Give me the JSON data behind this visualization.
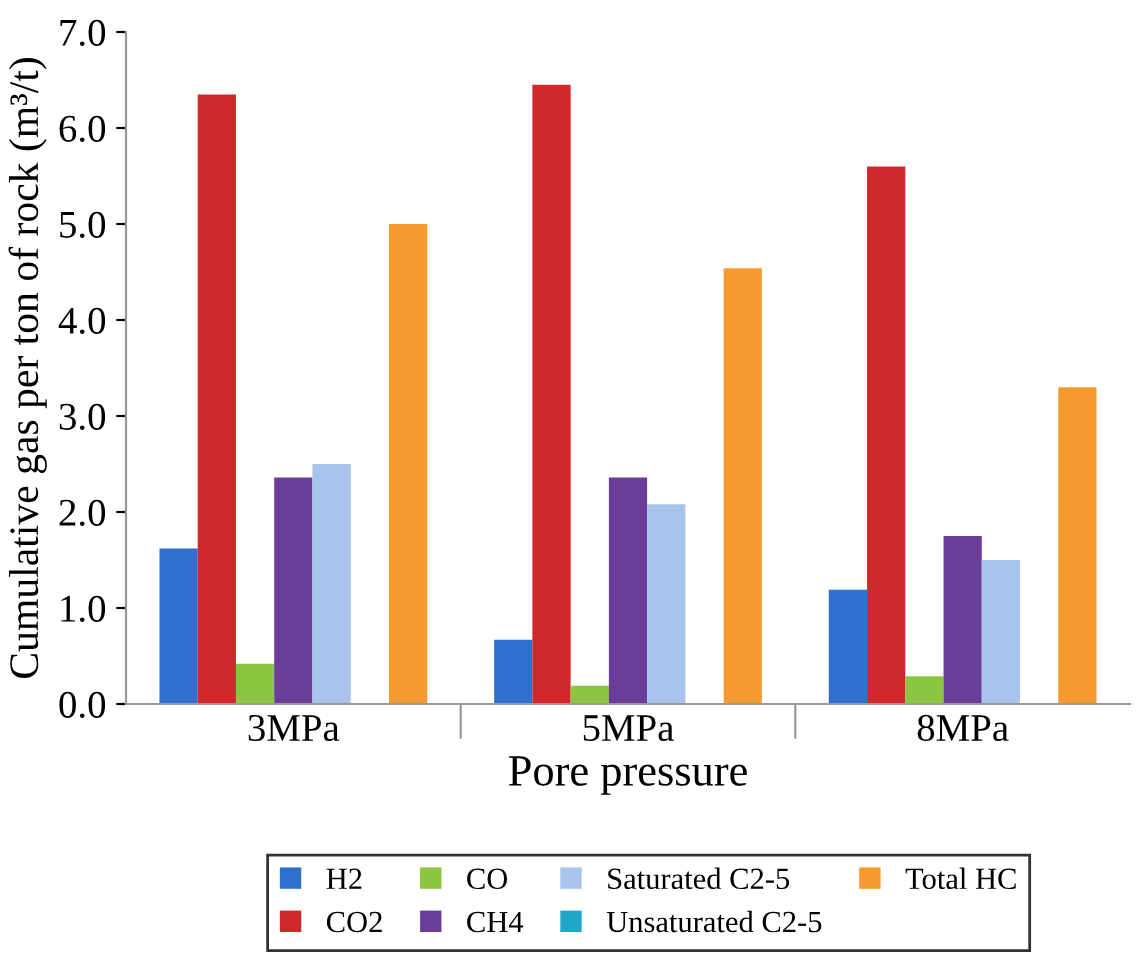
{
  "chart_data": {
    "type": "bar",
    "xlabel": "Pore pressure",
    "ylabel": "Cumulative gas per ton of rock (m³/t)",
    "categories": [
      "3MPa",
      "5MPa",
      "8MPa"
    ],
    "series": [
      {
        "name": "H2",
        "color": "#2e6fd0",
        "values": [
          1.62,
          0.67,
          1.19
        ]
      },
      {
        "name": "CO2",
        "color": "#d0282a",
        "values": [
          6.35,
          6.45,
          5.6
        ]
      },
      {
        "name": "CO",
        "color": "#8cc63e",
        "values": [
          0.42,
          0.19,
          0.29
        ]
      },
      {
        "name": "CH4",
        "color": "#6a3d9a",
        "values": [
          2.36,
          2.36,
          1.75
        ]
      },
      {
        "name": "Saturated C2-5",
        "color": "#a9c4ec",
        "values": [
          2.5,
          2.08,
          1.5
        ]
      },
      {
        "name": "Unsaturated C2-5",
        "color": "#1fa6c9",
        "values": [
          0,
          0,
          0
        ]
      },
      {
        "name": "Total HC",
        "color": "#f59a2e",
        "values": [
          5.0,
          4.54,
          3.3
        ]
      }
    ],
    "ylim": [
      0,
      7
    ],
    "yticks": [
      {
        "value": 0,
        "label": "0.0"
      },
      {
        "value": 1,
        "label": "1.0"
      },
      {
        "value": 2,
        "label": "2.0"
      },
      {
        "value": 3,
        "label": "3.0"
      },
      {
        "value": 4,
        "label": "4.0"
      },
      {
        "value": 5,
        "label": "5.0"
      },
      {
        "value": 6,
        "label": "6.0"
      },
      {
        "value": 7,
        "label": "7.0"
      }
    ],
    "grid": false,
    "legend": "bottom"
  }
}
